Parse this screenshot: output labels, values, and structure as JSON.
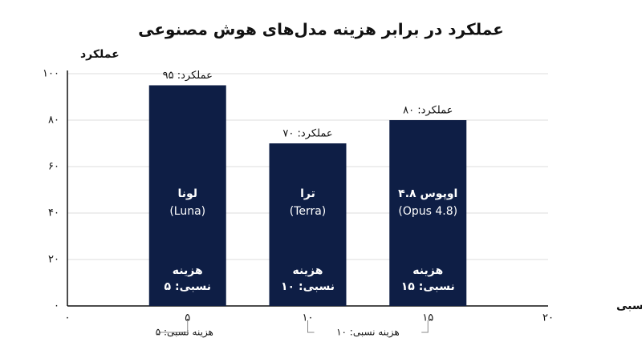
{
  "chart_data": {
    "type": "bar",
    "title": "عملکرد در برابر هزینه مدل‌های هوش مصنوعی",
    "xlabel": "هزینه نسبی",
    "ylabel": "عملکرد",
    "x": [
      5,
      10,
      15
    ],
    "values": [
      95,
      70,
      80
    ],
    "value_labels": [
      "عملکرد: ۹۵",
      "عملکرد: ۷۰",
      "عملکرد: ۸۰"
    ],
    "bar_names": [
      "لونا",
      "ترا",
      "اوپوس ۴.۸"
    ],
    "bar_subnames": [
      "(Luna)",
      "(Terra)",
      "(Opus 4.8)"
    ],
    "cost_labels": [
      [
        "هزینه",
        "نسبی: ۵"
      ],
      [
        "هزینه",
        "نسبی: ۱۰"
      ],
      [
        "هزینه",
        "نسبی: ۱۵"
      ]
    ],
    "color": "#0e1e45",
    "xlim": [
      0,
      20
    ],
    "xticks": [
      {
        "value": 0,
        "label": "۰"
      },
      {
        "value": 5,
        "label": "۵"
      },
      {
        "value": 10,
        "label": "۱۰"
      },
      {
        "value": 15,
        "label": "۱۵"
      },
      {
        "value": 20,
        "label": "۲۰"
      }
    ],
    "ylim": [
      0,
      100
    ],
    "yticks": [
      {
        "value": 0,
        "label": "۰"
      },
      {
        "value": 20,
        "label": "۲۰"
      },
      {
        "value": 40,
        "label": "۴۰"
      },
      {
        "value": 60,
        "label": "۶۰"
      },
      {
        "value": 80,
        "label": "۸۰"
      },
      {
        "value": 100,
        "label": "۱۰۰"
      }
    ],
    "grid": true,
    "annotations": [
      {
        "text": "هزینه نسبی: ۵",
        "x": [
          5
        ]
      },
      {
        "text": "هزینه نسبی: ۱۰",
        "x": [
          10,
          15
        ]
      }
    ]
  }
}
